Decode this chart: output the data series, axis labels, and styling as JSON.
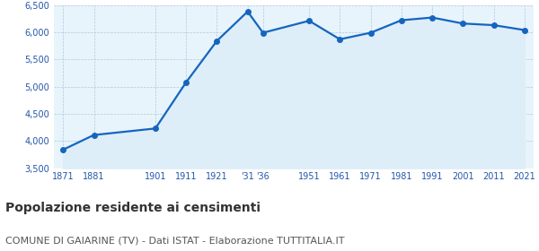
{
  "years": [
    1871,
    1881,
    1901,
    1911,
    1921,
    1931,
    1936,
    1951,
    1961,
    1971,
    1981,
    1991,
    2001,
    2011,
    2021
  ],
  "population": [
    3840,
    4110,
    4230,
    5080,
    5840,
    6380,
    5990,
    6210,
    5870,
    5990,
    6220,
    6270,
    6160,
    6130,
    6040
  ],
  "x_labels": [
    "1871",
    "1881",
    "1901",
    "1911",
    "1921",
    "'31",
    "'36",
    "1951",
    "1961",
    "1971",
    "1981",
    "1991",
    "2001",
    "2011",
    "2021"
  ],
  "ylim": [
    3500,
    6500
  ],
  "yticks": [
    3500,
    4000,
    4500,
    5000,
    5500,
    6000,
    6500
  ],
  "line_color": "#1565c0",
  "fill_color": "#ddeef8",
  "background_color": "#e8f4fb",
  "grid_color": "#b0c8dc",
  "tick_label_color": "#2255aa",
  "title": "Popolazione residente ai censimenti",
  "subtitle": "COMUNE DI GAIARINE (TV) - Dati ISTAT - Elaborazione TUTTITALIA.IT",
  "title_fontsize": 10,
  "subtitle_fontsize": 8,
  "marker_size": 4,
  "line_width": 1.6
}
